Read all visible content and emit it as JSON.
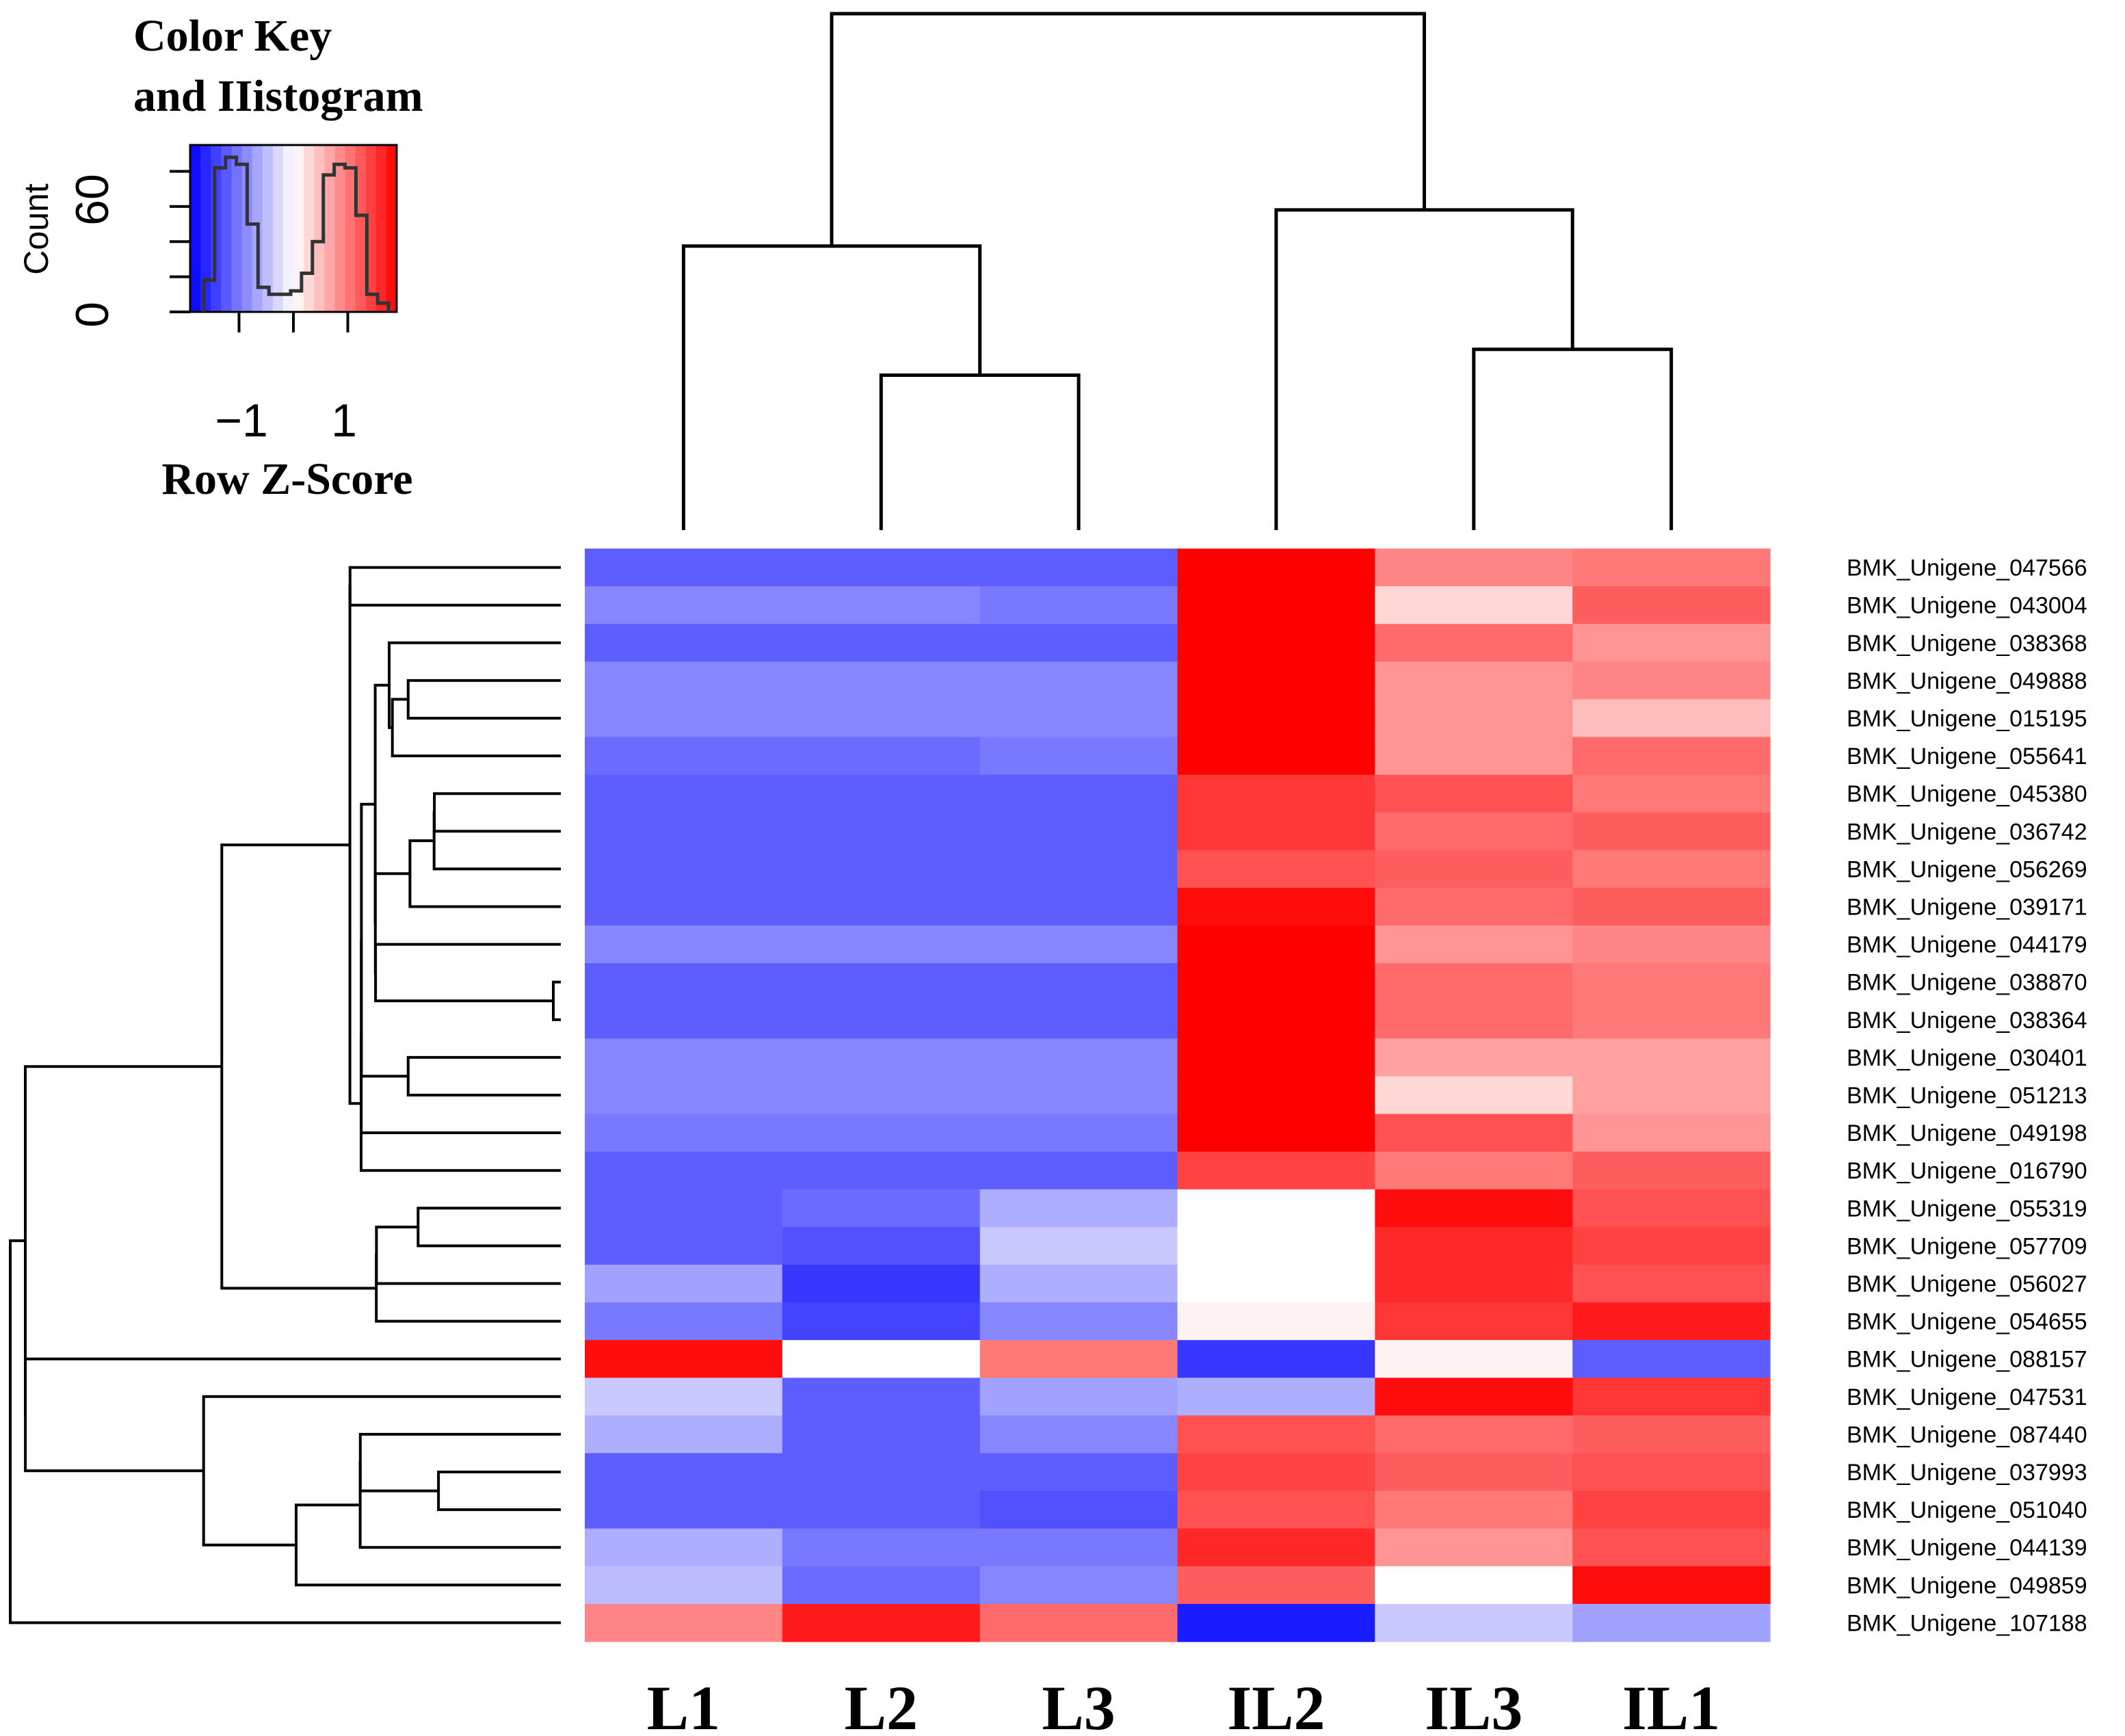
{
  "chart_data": {
    "type": "heatmap",
    "color_key": {
      "title_line1": "Color Key",
      "title_line2": "and IIistogram",
      "xlabel": "Row Z-Score",
      "ylabel": "Count",
      "x_ticks": [
        "−1",
        "1"
      ],
      "y_ticks": [
        "0",
        "60"
      ],
      "z_range": [
        -1.9,
        1.9
      ],
      "count_range": [
        0,
        95
      ],
      "histogram": [
        {
          "z": -1.55,
          "count": 18
        },
        {
          "z": -1.35,
          "count": 82
        },
        {
          "z": -1.15,
          "count": 88
        },
        {
          "z": -0.95,
          "count": 84
        },
        {
          "z": -0.75,
          "count": 50
        },
        {
          "z": -0.55,
          "count": 14
        },
        {
          "z": -0.35,
          "count": 10
        },
        {
          "z": -0.15,
          "count": 10
        },
        {
          "z": 0.05,
          "count": 12
        },
        {
          "z": 0.25,
          "count": 22
        },
        {
          "z": 0.45,
          "count": 40
        },
        {
          "z": 0.65,
          "count": 78
        },
        {
          "z": 0.85,
          "count": 84
        },
        {
          "z": 1.05,
          "count": 82
        },
        {
          "z": 1.25,
          "count": 55
        },
        {
          "z": 1.45,
          "count": 10
        },
        {
          "z": 1.65,
          "count": 5
        }
      ]
    },
    "columns": [
      "L1",
      "L2",
      "L3",
      "IL2",
      "IL3",
      "IL1"
    ],
    "row_labels": [
      "BMK_Unigene_047566",
      "BMK_Unigene_043004",
      "BMK_Unigene_038368",
      "BMK_Unigene_049888",
      "BMK_Unigene_015195",
      "BMK_Unigene_055641",
      "BMK_Unigene_045380",
      "BMK_Unigene_036742",
      "BMK_Unigene_056269",
      "BMK_Unigene_039171",
      "BMK_Unigene_044179",
      "BMK_Unigene_038870",
      "BMK_Unigene_038364",
      "BMK_Unigene_030401",
      "BMK_Unigene_051213",
      "BMK_Unigene_049198",
      "BMK_Unigene_016790",
      "BMK_Unigene_055319",
      "BMK_Unigene_057709",
      "BMK_Unigene_056027",
      "BMK_Unigene_054655",
      "BMK_Unigene_088157",
      "BMK_Unigene_047531",
      "BMK_Unigene_087440",
      "BMK_Unigene_037993",
      "BMK_Unigene_051040",
      "BMK_Unigene_044139",
      "BMK_Unigene_049859",
      "BMK_Unigene_107188"
    ],
    "z_scores": [
      [
        -1.2,
        -1.2,
        -1.2,
        2.0,
        0.9,
        1.0
      ],
      [
        -0.9,
        -0.9,
        -1.0,
        2.0,
        0.3,
        1.2
      ],
      [
        -1.2,
        -1.2,
        -1.2,
        1.9,
        1.1,
        0.8
      ],
      [
        -0.9,
        -0.9,
        -0.9,
        1.9,
        0.8,
        0.9
      ],
      [
        -0.9,
        -0.9,
        -0.9,
        2.0,
        0.8,
        0.5
      ],
      [
        -1.1,
        -1.1,
        -1.0,
        1.9,
        0.8,
        1.1
      ],
      [
        -1.2,
        -1.2,
        -1.2,
        1.5,
        1.3,
        1.0
      ],
      [
        -1.2,
        -1.2,
        -1.2,
        1.5,
        1.1,
        1.2
      ],
      [
        -1.2,
        -1.2,
        -1.2,
        1.3,
        1.2,
        1.0
      ],
      [
        -1.2,
        -1.2,
        -1.2,
        1.8,
        1.1,
        1.2
      ],
      [
        -0.9,
        -0.9,
        -0.9,
        1.9,
        0.8,
        0.9
      ],
      [
        -1.2,
        -1.2,
        -1.2,
        1.9,
        1.1,
        1.0
      ],
      [
        -1.2,
        -1.2,
        -1.2,
        1.9,
        1.1,
        1.0
      ],
      [
        -0.9,
        -0.9,
        -0.9,
        1.9,
        0.7,
        0.7
      ],
      [
        -0.9,
        -0.9,
        -0.9,
        2.0,
        0.3,
        0.7
      ],
      [
        -1.0,
        -1.0,
        -1.0,
        1.9,
        1.3,
        0.8
      ],
      [
        -1.2,
        -1.2,
        -1.2,
        1.4,
        1.0,
        1.2
      ],
      [
        -1.2,
        -1.1,
        -0.6,
        0.0,
        1.8,
        1.3
      ],
      [
        -1.2,
        -1.3,
        -0.4,
        0.0,
        1.6,
        1.4
      ],
      [
        -0.7,
        -1.5,
        -0.6,
        0.0,
        1.6,
        1.3
      ],
      [
        -1.0,
        -1.4,
        -0.9,
        0.1,
        1.5,
        1.7
      ],
      [
        1.8,
        0.0,
        1.0,
        -1.5,
        0.1,
        -1.2
      ],
      [
        -0.4,
        -1.2,
        -0.7,
        -0.6,
        1.8,
        1.5
      ],
      [
        -0.6,
        -1.2,
        -0.9,
        1.3,
        1.1,
        1.2
      ],
      [
        -1.2,
        -1.2,
        -1.2,
        1.4,
        1.2,
        1.3
      ],
      [
        -1.2,
        -1.2,
        -1.3,
        1.3,
        1.0,
        1.4
      ],
      [
        -0.6,
        -1.0,
        -1.0,
        1.6,
        0.8,
        1.3
      ],
      [
        -0.5,
        -1.1,
        -0.9,
        1.2,
        0.0,
        1.8
      ],
      [
        0.9,
        1.7,
        1.1,
        -1.7,
        -0.4,
        -0.7
      ]
    ],
    "column_dendrogram": {
      "order": [
        "L1",
        "L2",
        "L3",
        "IL2",
        "IL3",
        "IL1"
      ],
      "merges": [
        {
          "left": "L2",
          "right": "L3",
          "height": 0.3
        },
        {
          "left": "L1",
          "right": "L2+L3",
          "height": 0.55
        },
        {
          "left": "IL3",
          "right": "IL1",
          "height": 0.35
        },
        {
          "left": "IL2",
          "right": "IL3+IL1",
          "height": 0.62
        },
        {
          "left": "L1+L2+L3",
          "right": "IL2+IL3+IL1",
          "height": 1.0
        }
      ]
    }
  }
}
